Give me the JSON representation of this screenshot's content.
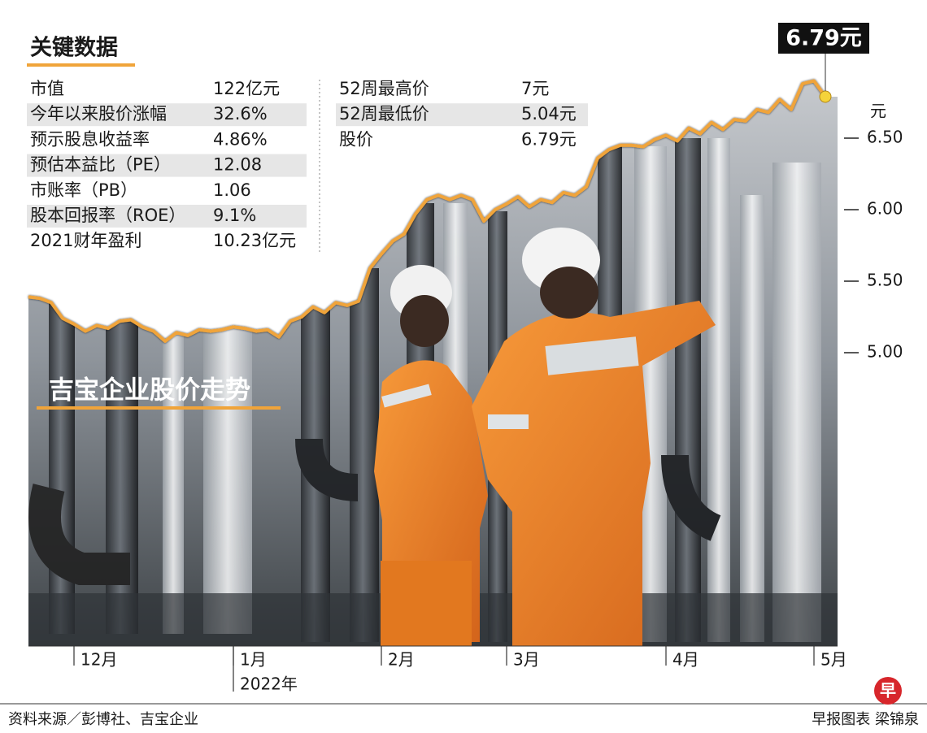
{
  "key_data": {
    "title": "关键数据",
    "left": [
      [
        "市值",
        "122亿元"
      ],
      [
        "今年以来股价涨幅",
        "32.6%"
      ],
      [
        "预示股息收益率",
        "4.86%"
      ],
      [
        "预估本益比（PE）",
        "12.08"
      ],
      [
        "市账率（PB）",
        "1.06"
      ],
      [
        "股本回报率（ROE）",
        "9.1%"
      ],
      [
        "2021财年盈利",
        "10.23亿元"
      ]
    ],
    "right": [
      [
        "52周最高价",
        "7元"
      ],
      [
        "52周最低价",
        "5.04元"
      ],
      [
        "股价",
        "6.79元"
      ]
    ]
  },
  "chart_data": {
    "type": "line",
    "title": "吉宝企业股价走势",
    "y_unit": "元",
    "year_label": "2022年",
    "categories": [
      null,
      null,
      null,
      null,
      "12月",
      null,
      null,
      null,
      null,
      null,
      null,
      null,
      null,
      null,
      null,
      null,
      null,
      null,
      "1月",
      null,
      null,
      null,
      null,
      null,
      null,
      null,
      null,
      null,
      null,
      null,
      null,
      "2月",
      null,
      null,
      null,
      null,
      null,
      null,
      null,
      null,
      null,
      null,
      "3月",
      null,
      null,
      null,
      null,
      null,
      null,
      null,
      null,
      null,
      null,
      null,
      null,
      null,
      "4月",
      null,
      null,
      null,
      null,
      null,
      null,
      null,
      null,
      null,
      null,
      null,
      null,
      "5月",
      null
    ],
    "values": [
      5.39,
      5.38,
      5.35,
      5.24,
      5.2,
      5.15,
      5.19,
      5.17,
      5.22,
      5.23,
      5.18,
      5.15,
      5.08,
      5.14,
      5.12,
      5.16,
      5.15,
      5.16,
      5.18,
      5.17,
      5.15,
      5.16,
      5.11,
      5.22,
      5.25,
      5.32,
      5.28,
      5.35,
      5.33,
      5.36,
      5.59,
      5.69,
      5.78,
      5.83,
      5.97,
      6.07,
      6.1,
      6.07,
      6.1,
      6.07,
      5.92,
      6.0,
      6.04,
      6.09,
      6.02,
      6.07,
      6.05,
      6.12,
      6.1,
      6.16,
      6.36,
      6.42,
      6.45,
      6.45,
      6.44,
      6.49,
      6.52,
      6.48,
      6.57,
      6.53,
      6.61,
      6.56,
      6.63,
      6.62,
      6.7,
      6.68,
      6.77,
      6.7,
      6.88,
      6.9,
      6.79
    ],
    "value_labels": [
      null,
      null,
      null,
      null,
      null,
      null,
      null,
      null,
      null,
      null,
      null,
      null,
      null,
      null,
      null,
      null,
      null,
      null,
      null,
      null,
      null,
      null,
      null,
      null,
      null,
      null,
      null,
      null,
      null,
      null,
      null,
      null,
      null,
      null,
      null,
      null,
      null,
      null,
      null,
      null,
      null,
      null,
      null,
      null,
      null,
      null,
      null,
      null,
      null,
      null,
      null,
      null,
      null,
      null,
      null,
      null,
      null,
      null,
      null,
      null,
      null,
      null,
      null,
      null,
      null,
      null,
      null,
      null,
      null,
      null,
      "6.79元"
    ],
    "color": "#f0a43a",
    "ylim": [
      3,
      7
    ],
    "yticks": [
      {
        "value": 5,
        "label": "5.00"
      },
      {
        "value": 5.5,
        "label": "5.50"
      },
      {
        "value": 6,
        "label": "6.00"
      },
      {
        "value": 6.5,
        "label": "6.50"
      }
    ],
    "grid": false
  },
  "footer": {
    "source": "资料来源／彭博社、吉宝企业",
    "credit": "早报图表 梁锦泉",
    "logo": "早"
  }
}
